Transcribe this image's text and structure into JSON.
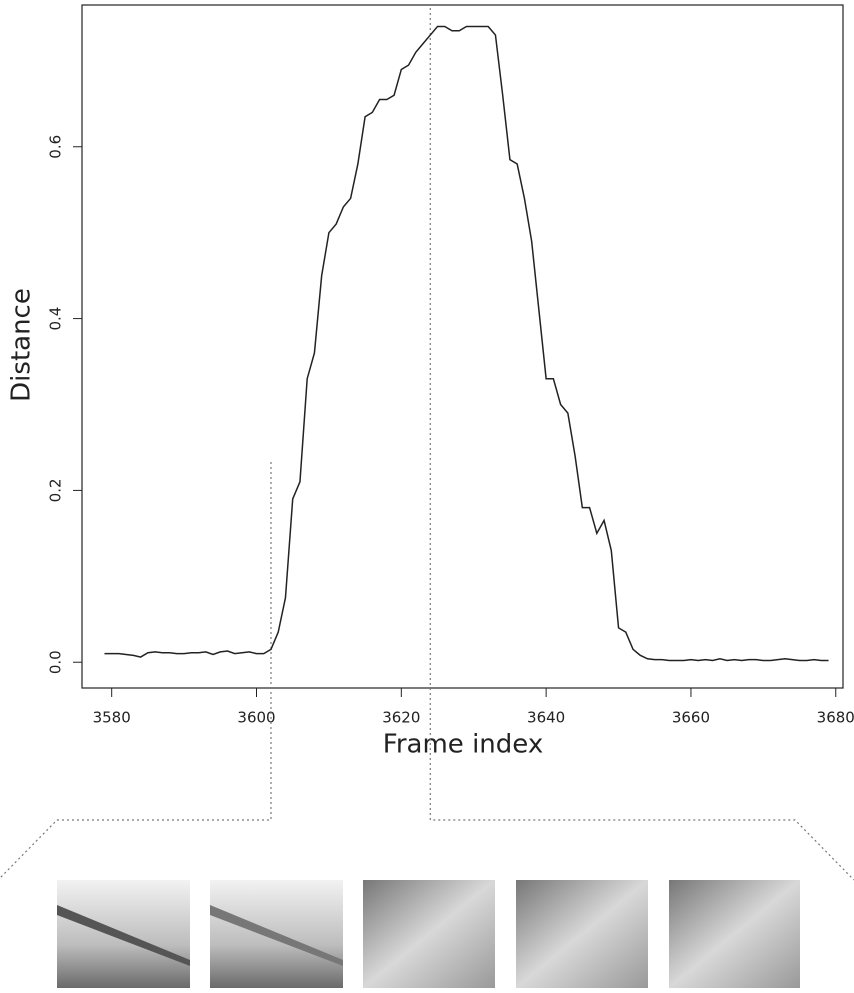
{
  "chart_data": {
    "type": "line",
    "xlabel": "Frame index",
    "ylabel": "Distance",
    "x": [
      3579,
      3580,
      3581,
      3582,
      3583,
      3584,
      3585,
      3586,
      3587,
      3588,
      3589,
      3590,
      3591,
      3592,
      3593,
      3594,
      3595,
      3596,
      3597,
      3598,
      3599,
      3600,
      3601,
      3602,
      3603,
      3604,
      3605,
      3606,
      3607,
      3608,
      3609,
      3610,
      3611,
      3612,
      3613,
      3614,
      3615,
      3616,
      3617,
      3618,
      3619,
      3620,
      3621,
      3622,
      3623,
      3624,
      3625,
      3626,
      3627,
      3628,
      3629,
      3630,
      3631,
      3632,
      3633,
      3634,
      3635,
      3636,
      3637,
      3638,
      3639,
      3640,
      3641,
      3642,
      3643,
      3644,
      3645,
      3646,
      3647,
      3648,
      3649,
      3650,
      3651,
      3652,
      3653,
      3654,
      3655,
      3656,
      3657,
      3658,
      3659,
      3660,
      3661,
      3662,
      3663,
      3664,
      3665,
      3666,
      3667,
      3668,
      3669,
      3670,
      3671,
      3672,
      3673,
      3674,
      3675,
      3676,
      3677,
      3678,
      3679
    ],
    "values": [
      0.01,
      0.01,
      0.01,
      0.009,
      0.008,
      0.006,
      0.011,
      0.012,
      0.011,
      0.011,
      0.01,
      0.01,
      0.011,
      0.011,
      0.012,
      0.009,
      0.012,
      0.013,
      0.01,
      0.011,
      0.012,
      0.01,
      0.01,
      0.015,
      0.035,
      0.075,
      0.19,
      0.21,
      0.33,
      0.36,
      0.45,
      0.5,
      0.51,
      0.53,
      0.54,
      0.58,
      0.635,
      0.64,
      0.655,
      0.655,
      0.66,
      0.69,
      0.695,
      0.71,
      0.72,
      0.73,
      0.74,
      0.74,
      0.735,
      0.735,
      0.74,
      0.74,
      0.74,
      0.74,
      0.73,
      0.66,
      0.585,
      0.58,
      0.54,
      0.49,
      0.41,
      0.33,
      0.33,
      0.3,
      0.29,
      0.24,
      0.18,
      0.18,
      0.15,
      0.165,
      0.13,
      0.04,
      0.035,
      0.015,
      0.008,
      0.004,
      0.003,
      0.003,
      0.002,
      0.002,
      0.002,
      0.003,
      0.002,
      0.003,
      0.002,
      0.004,
      0.002,
      0.003,
      0.002,
      0.003,
      0.003,
      0.002,
      0.002,
      0.003,
      0.004,
      0.003,
      0.002,
      0.002,
      0.003,
      0.002,
      0.002
    ],
    "color": "#222222",
    "xlim": [
      3575.9,
      3681
    ],
    "ylim": [
      -0.03,
      0.765
    ],
    "xticks": [
      3580,
      3600,
      3620,
      3640,
      3660,
      3680
    ],
    "yticks": [
      {
        "value": 0,
        "label": "0.0"
      },
      0.2,
      0.4,
      0.6
    ],
    "markers_x": [
      3602,
      3624
    ]
  }
}
